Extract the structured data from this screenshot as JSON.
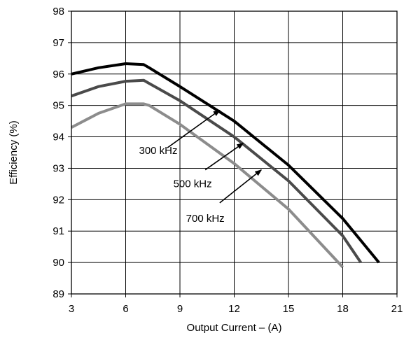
{
  "chart_data": {
    "type": "line",
    "title": "",
    "xlabel": "Output Current – (A)",
    "ylabel": "Efficiency (%)",
    "xlim": [
      3,
      21
    ],
    "ylim": [
      89,
      98
    ],
    "xticks": [
      "3",
      "6",
      "9",
      "12",
      "15",
      "18",
      "21"
    ],
    "yticks": [
      "89",
      "90",
      "91",
      "92",
      "93",
      "94",
      "95",
      "96",
      "97",
      "98"
    ],
    "grid": true,
    "series": [
      {
        "name": "300 kHz",
        "color": "#000000",
        "x": [
          3,
          4.5,
          6,
          7,
          7.3,
          9,
          12,
          15,
          18,
          20
        ],
        "y": [
          96.0,
          96.2,
          96.33,
          96.3,
          96.2,
          95.6,
          94.5,
          93.1,
          91.4,
          90.0
        ]
      },
      {
        "name": "500 kHz",
        "color": "#4a4a4a",
        "x": [
          3,
          4.5,
          6,
          7,
          7.3,
          9,
          12,
          15,
          18,
          19
        ],
        "y": [
          95.3,
          95.6,
          95.77,
          95.8,
          95.7,
          95.15,
          94.0,
          92.6,
          90.85,
          90.0
        ]
      },
      {
        "name": "700 kHz",
        "color": "#8c8c8c",
        "x": [
          3,
          4.5,
          6,
          7,
          7.3,
          9,
          12,
          15,
          18
        ],
        "y": [
          94.3,
          94.75,
          95.05,
          95.05,
          95.0,
          94.4,
          93.15,
          91.7,
          89.85
        ]
      }
    ],
    "annotations": [
      {
        "text": "300 kHz",
        "series": "300 kHz",
        "label_at": [
          7.8,
          93.45
        ],
        "arrow_from": [
          8.3,
          93.65
        ],
        "arrow_to": [
          11.2,
          94.85
        ]
      },
      {
        "text": "500 kHz",
        "series": "500 kHz",
        "label_at": [
          9.7,
          92.4
        ],
        "arrow_from": [
          10.4,
          92.95
        ],
        "arrow_to": [
          12.5,
          93.8
        ]
      },
      {
        "text": "700 kHz",
        "series": "700 kHz",
        "label_at": [
          10.4,
          91.3
        ],
        "arrow_from": [
          11.2,
          91.9
        ],
        "arrow_to": [
          13.5,
          92.95
        ]
      }
    ]
  }
}
